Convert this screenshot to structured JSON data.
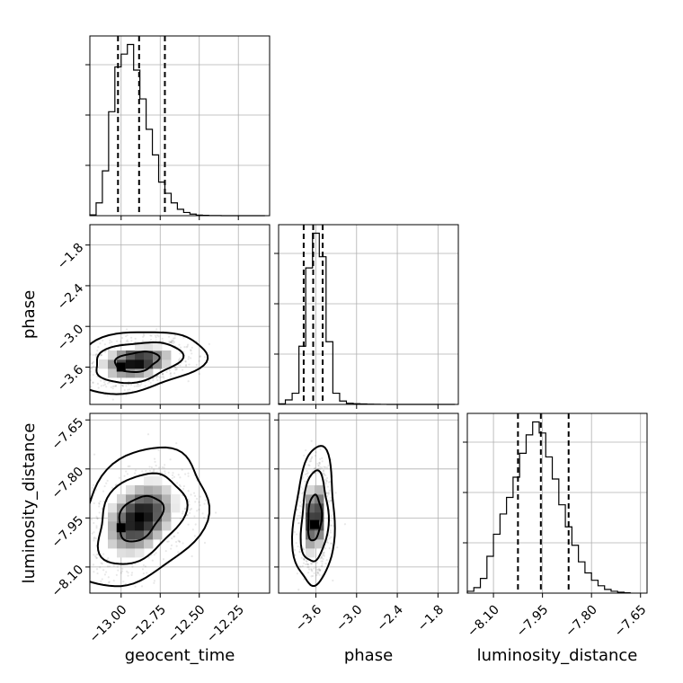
{
  "chart_data": {
    "type": "corner",
    "parameters": [
      "geocent_time",
      "phase",
      "luminosity_distance"
    ],
    "ticks": {
      "geocent_time": {
        "values": [
          -13.0,
          -12.75,
          -12.5,
          -12.25
        ],
        "labels": [
          "−13.00",
          "−12.75",
          "−12.50",
          "−12.25"
        ]
      },
      "phase": {
        "values": [
          -3.6,
          -3.0,
          -2.4,
          -1.8
        ],
        "labels": [
          "−3.6",
          "−3.0",
          "−2.4",
          "−1.8"
        ]
      },
      "luminosity_distance": {
        "values": [
          -8.1,
          -7.95,
          -7.8,
          -7.65
        ],
        "labels": [
          "−8.10",
          "−7.95",
          "−7.80",
          "−7.65"
        ]
      }
    },
    "ranges": {
      "geocent_time": [
        -13.2,
        -12.05
      ],
      "phase": [
        -4.15,
        -1.5
      ],
      "luminosity_distance": [
        -8.18,
        -7.63
      ]
    },
    "grid": true,
    "histograms": {
      "geocent_time": {
        "quantiles": [
          -13.02,
          -12.885,
          -12.72
        ],
        "edges": [
          -13.2,
          -13.16,
          -13.12,
          -13.08,
          -13.04,
          -13.0,
          -12.96,
          -12.92,
          -12.88,
          -12.84,
          -12.8,
          -12.76,
          -12.72,
          -12.68,
          -12.64,
          -12.6,
          -12.56,
          -12.52,
          -12.48,
          -12.44,
          -12.4,
          -12.36,
          -12.32,
          -12.28,
          -12.24,
          -12.2,
          -12.16,
          -12.12,
          -12.08
        ],
        "counts": [
          0.5,
          8,
          28,
          65,
          93,
          101,
          107,
          91,
          73,
          54,
          38,
          21,
          14,
          8,
          4,
          2,
          1,
          0.4,
          0.2,
          0.1,
          0.05,
          0,
          0,
          0,
          0,
          0,
          0,
          0
        ]
      },
      "phase": {
        "quantiles": [
          -3.78,
          -3.64,
          -3.5
        ],
        "edges": [
          -4.15,
          -4.05,
          -3.95,
          -3.85,
          -3.75,
          -3.65,
          -3.55,
          -3.45,
          -3.35,
          -3.25,
          -3.15,
          -3.05,
          -2.95,
          -2.85,
          -2.75,
          -2.65,
          -2.55,
          -2.45,
          -2.35,
          -2.25,
          -2.15,
          -2.05,
          -1.95,
          -1.85,
          -1.75,
          -1.65,
          -1.55
        ],
        "counts": [
          0.5,
          4,
          10,
          52,
          122,
          153,
          132,
          56,
          10,
          3,
          1,
          0.6,
          0.4,
          0.2,
          0.1,
          0.05,
          0,
          0,
          0,
          0,
          0,
          0,
          0,
          0,
          0,
          0
        ]
      },
      "luminosity_distance": {
        "quantiles": [
          -8.025,
          -7.955,
          -7.87
        ],
        "edges": [
          -8.18,
          -8.16,
          -8.14,
          -8.12,
          -8.1,
          -8.08,
          -8.06,
          -8.04,
          -8.02,
          -8.0,
          -7.98,
          -7.96,
          -7.94,
          -7.92,
          -7.9,
          -7.88,
          -7.86,
          -7.84,
          -7.82,
          -7.8,
          -7.78,
          -7.76,
          -7.74,
          -7.72,
          -7.7,
          -7.68
        ],
        "counts": [
          1,
          3,
          8,
          20,
          32,
          43,
          52,
          63,
          76,
          86,
          93,
          87,
          74,
          62,
          48,
          36,
          26,
          17,
          11,
          7,
          4,
          2,
          1,
          0.5,
          0.2
        ]
      }
    },
    "joint": [
      {
        "x": "geocent_time",
        "y": "phase",
        "mean": [
          -12.9,
          -3.52
        ],
        "sd": [
          0.14,
          0.15
        ],
        "rho": 0.28,
        "peak": [
          -13.0,
          -3.6
        ]
      },
      {
        "x": "geocent_time",
        "y": "luminosity_distance",
        "mean": [
          -12.88,
          -7.95
        ],
        "sd": [
          0.14,
          0.07
        ],
        "rho": 0.35,
        "peak": [
          -13.0,
          -7.98
        ]
      },
      {
        "x": "phase",
        "y": "luminosity_distance",
        "mean": [
          -3.62,
          -7.95
        ],
        "sd": [
          0.1,
          0.07
        ],
        "rho": 0.15,
        "peak": [
          -3.62,
          -7.97
        ]
      }
    ],
    "contour_levels": [
      0.39,
      0.86,
      0.99
    ]
  }
}
